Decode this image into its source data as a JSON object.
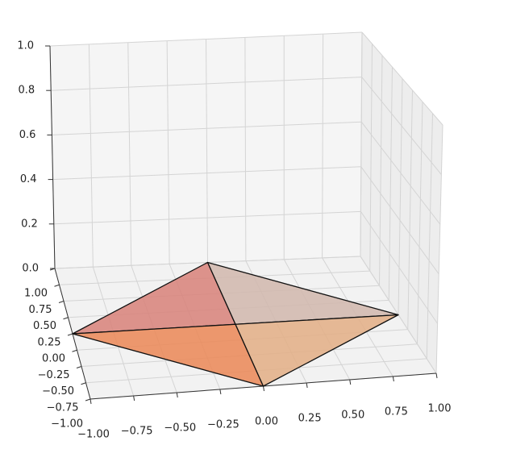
{
  "chart_data": {
    "type": "poly3d",
    "xlim": [
      -1,
      1
    ],
    "ylim": [
      -1,
      1
    ],
    "zlim": [
      0,
      1
    ],
    "xticks": [
      {
        "value": -1,
        "label": "−1.00"
      },
      {
        "value": -0.75,
        "label": "−0.75"
      },
      {
        "value": -0.5,
        "label": "−0.50"
      },
      {
        "value": -0.25,
        "label": "−0.25"
      },
      {
        "value": 0,
        "label": "0.00"
      },
      {
        "value": 0.25,
        "label": "0.25"
      },
      {
        "value": 0.5,
        "label": "0.50"
      },
      {
        "value": 0.75,
        "label": "0.75"
      },
      {
        "value": 1,
        "label": "1.00"
      }
    ],
    "yticks": [
      {
        "value": -1,
        "label": "−1.00"
      },
      {
        "value": -0.75,
        "label": "−0.75"
      },
      {
        "value": -0.5,
        "label": "−0.50"
      },
      {
        "value": -0.25,
        "label": "−0.25"
      },
      {
        "value": 0,
        "label": "0.00"
      },
      {
        "value": 0.25,
        "label": "0.25"
      },
      {
        "value": 0.5,
        "label": "0.50"
      },
      {
        "value": 0.75,
        "label": "0.75"
      },
      {
        "value": 1,
        "label": "1.00"
      }
    ],
    "zticks": [
      {
        "value": 0,
        "label": "0.0"
      },
      {
        "value": 0.2,
        "label": "0.2"
      },
      {
        "value": 0.4,
        "label": "0.4"
      },
      {
        "value": 0.6,
        "label": "0.6"
      },
      {
        "value": 0.8,
        "label": "0.8"
      },
      {
        "value": 1,
        "label": "1.0"
      }
    ],
    "grid": true,
    "series": [
      {
        "color": "#d8847c",
        "vertices": [
          [
            0,
            0,
            0
          ],
          [
            0,
            1,
            0
          ],
          [
            -1,
            0,
            0
          ]
        ]
      },
      {
        "color": "#d2b8ae",
        "vertices": [
          [
            0,
            0,
            0
          ],
          [
            0,
            1,
            0
          ],
          [
            1,
            0,
            0
          ]
        ]
      },
      {
        "color": "#ea8a5a",
        "vertices": [
          [
            0,
            0,
            0
          ],
          [
            -1,
            0,
            0
          ],
          [
            0,
            -1,
            0
          ]
        ]
      },
      {
        "color": "#e2af88",
        "vertices": [
          [
            0,
            0,
            0
          ],
          [
            1,
            0,
            0
          ],
          [
            0,
            -1,
            0
          ]
        ]
      }
    ]
  }
}
